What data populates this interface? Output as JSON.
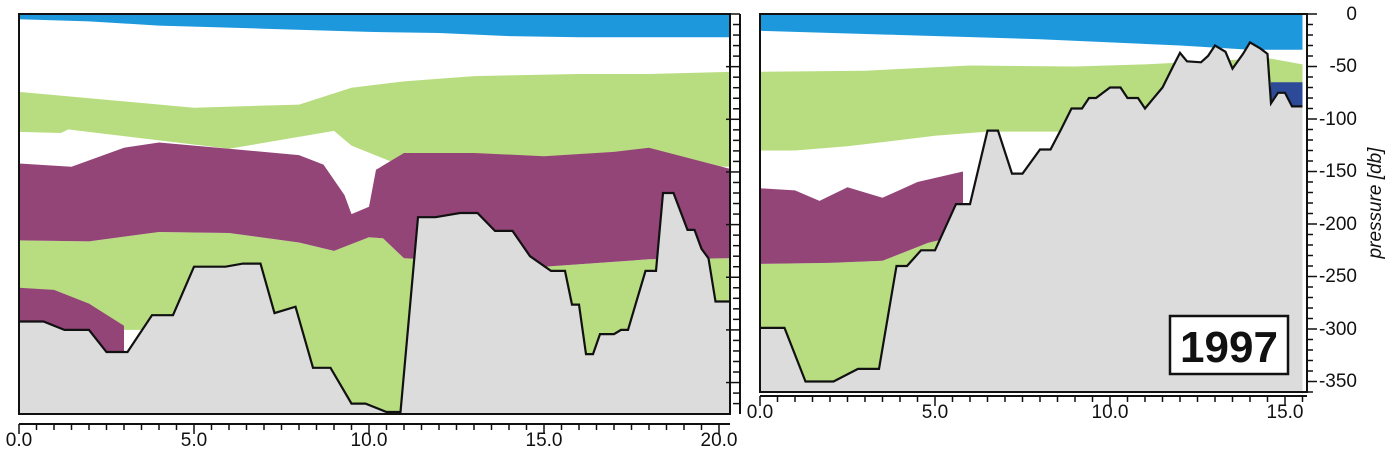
{
  "colors": {
    "surface_water": "#1e98dc",
    "upper_layer": "#b8dd80",
    "intermediate_layer": "#944578",
    "deep_layer": "#b8dd80",
    "bottom_water": "#2c4a98",
    "seabed": "#dcdcdc",
    "background": "#ffffff"
  },
  "chart_data": [
    {
      "type": "area",
      "panel": "left",
      "xlim": [
        0,
        20.3
      ],
      "ylim": [
        0,
        -385
      ],
      "x_ticks": [
        "0.0",
        "5.0",
        "10.0",
        "15.0",
        "20.0"
      ],
      "x_tick_values": [
        0,
        5,
        10,
        15,
        20
      ],
      "bottom_profile": [
        [
          0,
          -292
        ],
        [
          0.7,
          -292
        ],
        [
          1.3,
          -300
        ],
        [
          2.0,
          -300
        ],
        [
          2.5,
          -321
        ],
        [
          3.1,
          -321
        ],
        [
          3.8,
          -286
        ],
        [
          4.4,
          -286
        ],
        [
          5.0,
          -240
        ],
        [
          5.9,
          -240
        ],
        [
          6.4,
          -237
        ],
        [
          6.9,
          -237
        ],
        [
          7.3,
          -284
        ],
        [
          7.9,
          -278
        ],
        [
          8.4,
          -336
        ],
        [
          8.9,
          -336
        ],
        [
          9.5,
          -370
        ],
        [
          9.9,
          -370
        ],
        [
          10.5,
          -378
        ],
        [
          10.9,
          -378
        ],
        [
          11.4,
          -193
        ],
        [
          11.9,
          -193
        ],
        [
          12.6,
          -189
        ],
        [
          13.1,
          -189
        ],
        [
          13.6,
          -206
        ],
        [
          14.1,
          -206
        ],
        [
          14.6,
          -230
        ],
        [
          15.2,
          -244
        ],
        [
          15.6,
          -244
        ],
        [
          15.8,
          -276
        ],
        [
          16.0,
          -276
        ],
        [
          16.2,
          -323
        ],
        [
          16.4,
          -323
        ],
        [
          16.6,
          -304
        ],
        [
          17.0,
          -304
        ],
        [
          17.2,
          -300
        ],
        [
          17.4,
          -300
        ],
        [
          17.9,
          -244
        ],
        [
          18.2,
          -244
        ],
        [
          18.4,
          -170
        ],
        [
          18.7,
          -170
        ],
        [
          19.1,
          -205
        ],
        [
          19.3,
          -205
        ],
        [
          19.5,
          -223
        ],
        [
          19.7,
          -232
        ],
        [
          19.9,
          -273
        ],
        [
          20.3,
          -273
        ]
      ],
      "surface_layer_bottom": [
        [
          0,
          -5
        ],
        [
          2,
          -7
        ],
        [
          4,
          -11
        ],
        [
          7,
          -14
        ],
        [
          10,
          -17
        ],
        [
          12,
          -18
        ],
        [
          14,
          -21
        ],
        [
          16,
          -22
        ],
        [
          18,
          -22
        ],
        [
          20.3,
          -22
        ]
      ],
      "upper_layer_top": [
        [
          0,
          -74
        ],
        [
          5,
          -89
        ],
        [
          8,
          -86
        ],
        [
          9.5,
          -70
        ],
        [
          11,
          -64
        ],
        [
          13,
          -59
        ],
        [
          16,
          -57
        ],
        [
          18,
          -57
        ],
        [
          20.3,
          -55
        ]
      ],
      "upper_layer_bottom": [
        [
          0,
          -104
        ],
        [
          6,
          -128
        ],
        [
          9,
          -111
        ],
        [
          9.5,
          -125
        ],
        [
          11,
          -145
        ],
        [
          13,
          -145
        ],
        [
          16,
          -150
        ],
        [
          18,
          -143
        ],
        [
          20.3,
          -145
        ]
      ],
      "intermediate_layer_top": [
        [
          0,
          -142
        ],
        [
          1.5,
          -145
        ],
        [
          3,
          -127
        ],
        [
          4,
          -122
        ],
        [
          6,
          -128
        ],
        [
          8,
          -134
        ],
        [
          8.7,
          -143
        ],
        [
          9.3,
          -172
        ],
        [
          9.5,
          -190
        ],
        [
          10,
          -183
        ],
        [
          10.2,
          -148
        ],
        [
          11,
          -132
        ],
        [
          13,
          -132
        ],
        [
          15,
          -135
        ],
        [
          17,
          -131
        ],
        [
          18,
          -127
        ],
        [
          20.3,
          -147
        ]
      ],
      "intermediate_layer_bottom": [
        [
          0,
          -215
        ],
        [
          2,
          -216
        ],
        [
          4,
          -207
        ],
        [
          6,
          -208
        ],
        [
          8,
          -217
        ],
        [
          9,
          -225
        ],
        [
          10,
          -212
        ],
        [
          10.4,
          -213
        ],
        [
          11,
          -232
        ],
        [
          13,
          -235
        ],
        [
          15,
          -240
        ],
        [
          18,
          -233
        ],
        [
          20.3,
          -232
        ]
      ],
      "deep_layer_top": [
        [
          0,
          -215
        ],
        [
          2,
          -216
        ],
        [
          4,
          -207
        ],
        [
          6,
          -208
        ],
        [
          8,
          -217
        ],
        [
          9,
          -225
        ],
        [
          10,
          -212
        ],
        [
          10.4,
          -213
        ],
        [
          11,
          -232
        ]
      ],
      "lower_patch_left": [
        [
          0,
          -260
        ],
        [
          1,
          -262
        ],
        [
          2,
          -275
        ],
        [
          3,
          -296
        ]
      ]
    },
    {
      "type": "area",
      "panel": "right",
      "xlim": [
        0,
        15.5
      ],
      "ylim": [
        0,
        -360
      ],
      "x_ticks": [
        "0.0",
        "5.0",
        "10.0",
        "15.0"
      ],
      "x_tick_values": [
        0,
        5,
        10,
        15
      ],
      "ylabel": "pressure [db]",
      "y_ticks": [
        "0",
        "-50",
        "-100",
        "-150",
        "-200",
        "-250",
        "-300",
        "-350"
      ],
      "y_tick_values": [
        0,
        -50,
        -100,
        -150,
        -200,
        -250,
        -300,
        -350
      ],
      "year_label": "1997",
      "bottom_profile": [
        [
          0,
          -299
        ],
        [
          0.7,
          -299
        ],
        [
          1.3,
          -350
        ],
        [
          2.1,
          -350
        ],
        [
          2.8,
          -338
        ],
        [
          3.4,
          -338
        ],
        [
          3.9,
          -240
        ],
        [
          4.2,
          -240
        ],
        [
          4.6,
          -225
        ],
        [
          5.0,
          -225
        ],
        [
          5.6,
          -181
        ],
        [
          6.0,
          -181
        ],
        [
          6.5,
          -111
        ],
        [
          6.8,
          -111
        ],
        [
          7.2,
          -152
        ],
        [
          7.5,
          -152
        ],
        [
          8.0,
          -129
        ],
        [
          8.3,
          -129
        ],
        [
          8.6,
          -110
        ],
        [
          8.9,
          -90
        ],
        [
          9.2,
          -90
        ],
        [
          9.4,
          -80
        ],
        [
          9.6,
          -80
        ],
        [
          10.0,
          -70
        ],
        [
          10.3,
          -70
        ],
        [
          10.5,
          -80
        ],
        [
          10.8,
          -80
        ],
        [
          11.0,
          -90
        ],
        [
          11.2,
          -82
        ],
        [
          11.5,
          -70
        ],
        [
          11.8,
          -50
        ],
        [
          12.0,
          -37
        ],
        [
          12.2,
          -45
        ],
        [
          12.6,
          -46
        ],
        [
          12.8,
          -40
        ],
        [
          13.0,
          -30
        ],
        [
          13.3,
          -36
        ],
        [
          13.5,
          -52
        ],
        [
          13.8,
          -38
        ],
        [
          14.0,
          -27
        ],
        [
          14.3,
          -33
        ],
        [
          14.5,
          -38
        ],
        [
          14.6,
          -85
        ],
        [
          14.8,
          -75
        ],
        [
          15.0,
          -75
        ],
        [
          15.2,
          -88
        ],
        [
          15.5,
          -88
        ]
      ],
      "surface_layer_bottom": [
        [
          0,
          -16
        ],
        [
          4,
          -20
        ],
        [
          8,
          -24
        ],
        [
          12,
          -30
        ],
        [
          14,
          -34
        ],
        [
          15.5,
          -34
        ]
      ],
      "upper_layer_top": [
        [
          0,
          -55
        ],
        [
          3,
          -54
        ],
        [
          6,
          -49
        ],
        [
          9,
          -50
        ],
        [
          11,
          -48
        ],
        [
          14.5,
          -42
        ],
        [
          15.5,
          -48
        ]
      ],
      "upper_layer_bottom": [
        [
          0,
          -130
        ],
        [
          1,
          -130
        ],
        [
          2.5,
          -126
        ],
        [
          5,
          -116
        ],
        [
          6.5,
          -112
        ]
      ],
      "intermediate_layer_top": [
        [
          0,
          -166
        ],
        [
          1,
          -168
        ],
        [
          1.7,
          -178
        ],
        [
          2.5,
          -165
        ],
        [
          3.5,
          -175
        ],
        [
          4.5,
          -160
        ],
        [
          5.8,
          -150
        ]
      ],
      "intermediate_layer_bottom": [
        [
          0,
          -238
        ],
        [
          2,
          -237
        ],
        [
          3.5,
          -235
        ],
        [
          4.8,
          -218
        ],
        [
          5.8,
          -210
        ]
      ],
      "bottom_water_patch": [
        [
          14.6,
          -65
        ],
        [
          15.5,
          -65
        ],
        [
          15.5,
          -88
        ],
        [
          14.6,
          -88
        ]
      ]
    }
  ]
}
